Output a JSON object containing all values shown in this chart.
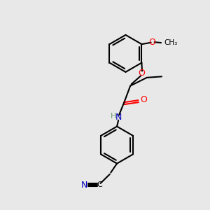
{
  "background_color": "#e8e8e8",
  "bond_color": "#000000",
  "O_color": "#ff0000",
  "N_color": "#0000bb",
  "H_color": "#6a9a6a",
  "figsize": [
    3.0,
    3.0
  ],
  "dpi": 100,
  "xlim": [
    0,
    10
  ],
  "ylim": [
    0,
    10
  ]
}
